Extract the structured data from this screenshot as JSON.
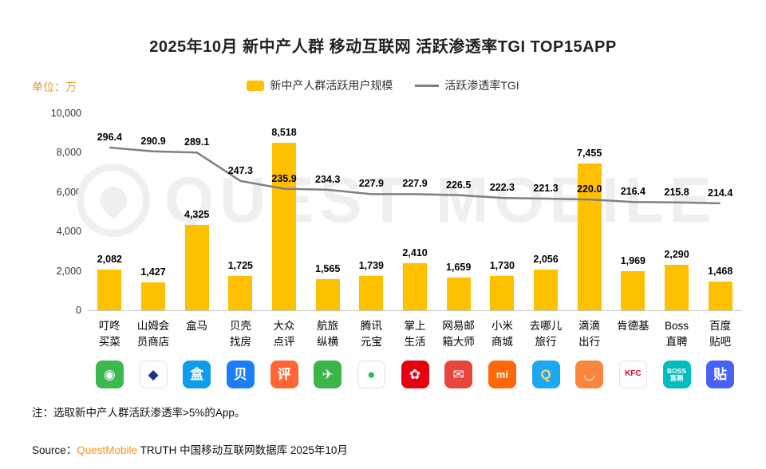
{
  "title": "2025年10月 新中产人群 移动互联网 活跃渗透率TGI TOP15APP",
  "unit_label": "单位：万",
  "watermark_text": "QUEST MOBILE",
  "legend": {
    "bar_label": "新中产人群活跃用户规模",
    "line_label": "活跃渗透率TGI"
  },
  "colors": {
    "bar": "#FFC000",
    "line": "#808080",
    "accent_orange": "#F7941D",
    "watermark": "#EFEFEF"
  },
  "chart_data": {
    "type": "bar+line",
    "title": "2025年10月 新中产人群 移动互联网 活跃渗透率TGI TOP15APP",
    "ylabel": "单位：万",
    "legend_position": "top-center",
    "grid": false,
    "categories": [
      "叮咚买菜",
      "山姆会员商店",
      "盒马",
      "贝壳找房",
      "大众点评",
      "航旅纵横",
      "腾讯元宝",
      "掌上生活",
      "网易邮箱大师",
      "小米商城",
      "去哪儿旅行",
      "滴滴出行",
      "肯德基",
      "Boss直聘",
      "百度贴吧"
    ],
    "category_lines": [
      [
        "叮咚",
        "买菜"
      ],
      [
        "山姆会",
        "员商店"
      ],
      [
        "盒马"
      ],
      [
        "贝壳",
        "找房"
      ],
      [
        "大众",
        "点评"
      ],
      [
        "航旅",
        "纵横"
      ],
      [
        "腾讯",
        "元宝"
      ],
      [
        "掌上",
        "生活"
      ],
      [
        "网易邮",
        "箱大师"
      ],
      [
        "小米",
        "商城"
      ],
      [
        "去哪儿",
        "旅行"
      ],
      [
        "滴滴",
        "出行"
      ],
      [
        "肯德基"
      ],
      [
        "Boss",
        "直聘"
      ],
      [
        "百度",
        "贴吧"
      ]
    ],
    "series": [
      {
        "name": "新中产人群活跃用户规模",
        "type": "bar",
        "values": [
          2082,
          1427,
          4325,
          1725,
          8518,
          1565,
          1739,
          2410,
          1659,
          1730,
          2056,
          7455,
          1969,
          2290,
          1468
        ],
        "labels": [
          "2,082",
          "1,427",
          "4,325",
          "1,725",
          "8,518",
          "1,565",
          "1,739",
          "2,410",
          "1,659",
          "1,730",
          "2,056",
          "7,455",
          "1,969",
          "2,290",
          "1,468"
        ]
      },
      {
        "name": "活跃渗透率TGI",
        "type": "line",
        "values": [
          296.4,
          290.9,
          289.1,
          247.3,
          235.9,
          234.3,
          227.9,
          227.9,
          226.5,
          222.3,
          221.3,
          220.0,
          216.4,
          215.8,
          214.4
        ],
        "labels": [
          "296.4",
          "290.9",
          "289.1",
          "247.3",
          "235.9",
          "234.3",
          "227.9",
          "227.9",
          "226.5",
          "222.3",
          "221.3",
          "220.0",
          "216.4",
          "215.8",
          "214.4"
        ]
      }
    ],
    "y_axis": {
      "min": 0,
      "max": 10000,
      "ticks": [
        "0",
        "2,000",
        "4,000",
        "6,000",
        "8,000",
        "10,000"
      ]
    }
  },
  "app_icons": [
    {
      "name": "dingdong-maicai",
      "bg": "#3CB94E",
      "fg": "#FFFFFF",
      "glyph": "◉"
    },
    {
      "name": "sams-club",
      "bg": "#FFFFFF",
      "fg": "#16368C",
      "glyph": "◆",
      "border": "#E2E2E2"
    },
    {
      "name": "hema",
      "bg": "#0E9DEB",
      "fg": "#FFFFFF",
      "glyph": "盒"
    },
    {
      "name": "beike-zhaofang",
      "bg": "#1D7DF7",
      "fg": "#FFFFFF",
      "glyph": "贝"
    },
    {
      "name": "dazhong-dianping",
      "bg": "#FF6633",
      "fg": "#FFFFFF",
      "glyph": "评"
    },
    {
      "name": "hanglv-zongheng",
      "bg": "#39B54A",
      "fg": "#FFFFFF",
      "glyph": "✈"
    },
    {
      "name": "tencent-yuanbao",
      "bg": "#FFFFFF",
      "fg": "#2BBE51",
      "glyph": "●",
      "border": "#E2E2E2"
    },
    {
      "name": "zhangshang-shenghuo",
      "bg": "#E60012",
      "fg": "#FFFFFF",
      "glyph": "✿"
    },
    {
      "name": "netease-mail-master",
      "bg": "#E8453C",
      "fg": "#FFFFFF",
      "glyph": "✉"
    },
    {
      "name": "xiaomi-store",
      "bg": "#FF6709",
      "fg": "#FFFFFF",
      "glyph": "mi"
    },
    {
      "name": "qunar-travel",
      "bg": "#1CA8F2",
      "fg": "#FFD76F",
      "glyph": "Q"
    },
    {
      "name": "didi-chuxing",
      "bg": "#F9853F",
      "fg": "#FFFFFF",
      "glyph": "◡"
    },
    {
      "name": "kfc",
      "bg": "#FFFFFF",
      "fg": "#E4002B",
      "glyph": "KFC",
      "border": "#E2E2E2"
    },
    {
      "name": "boss-zhipin",
      "bg": "#00BEBD",
      "fg": "#FFFFFF",
      "glyph": "BOSS\n直聘"
    },
    {
      "name": "baidu-tieba",
      "bg": "#4662F7",
      "fg": "#FFFFFF",
      "glyph": "贴"
    }
  ],
  "note": "注：选取新中产人群活跃渗透率>5%的App。",
  "source": {
    "prefix": "Source：",
    "brand": "QuestMobile",
    "suffix": " TRUTH 中国移动互联网数据库 2025年10月"
  }
}
